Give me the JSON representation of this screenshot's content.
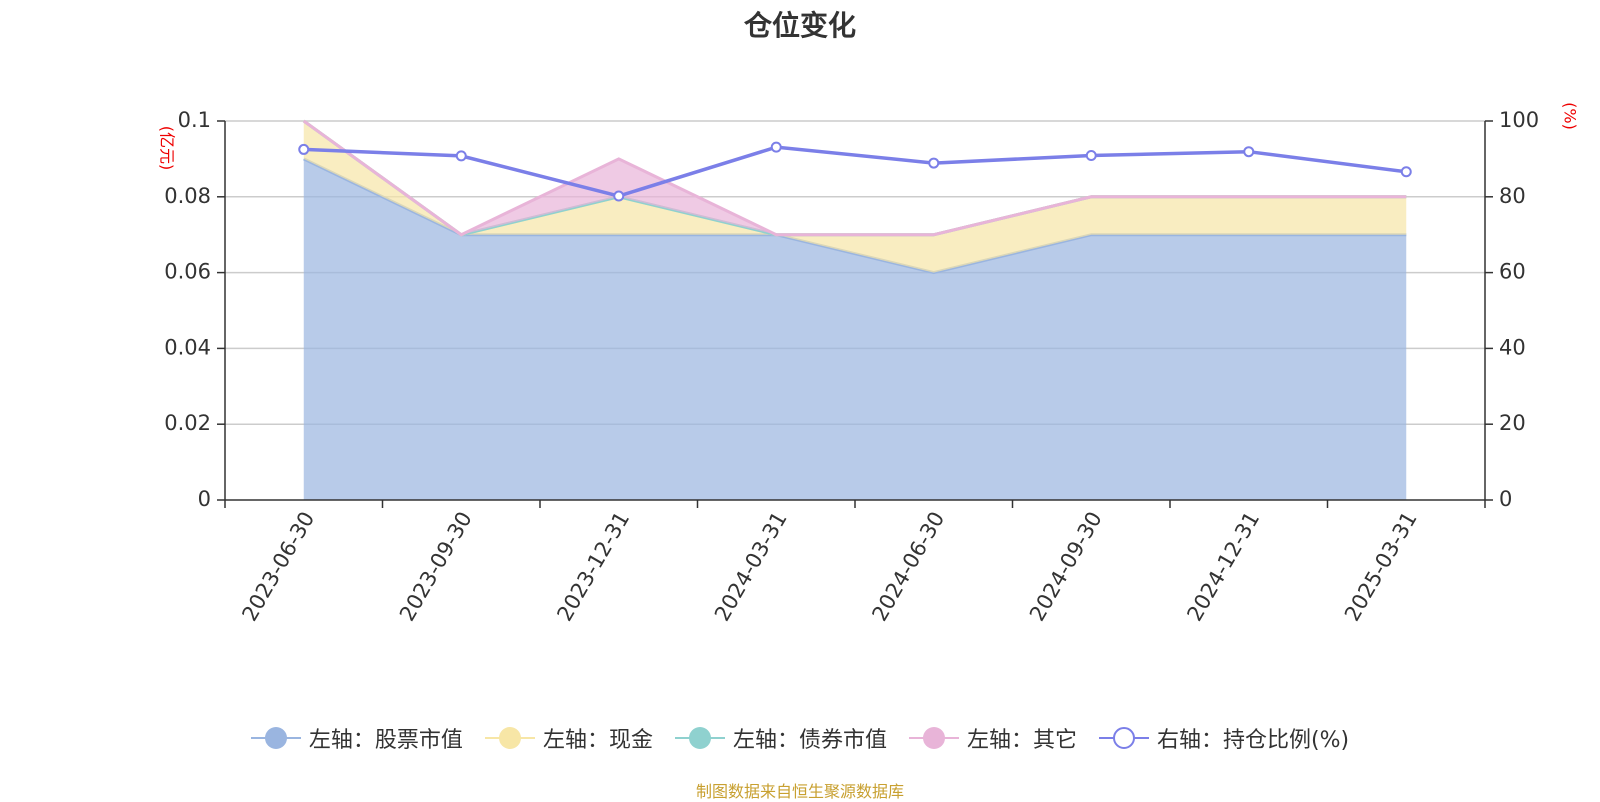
{
  "chart_data": {
    "type": "area",
    "title": "仓位变化",
    "categories": [
      "2023-06-30",
      "2023-09-30",
      "2023-12-31",
      "2024-03-31",
      "2024-06-30",
      "2024-09-30",
      "2024-12-31",
      "2025-03-31"
    ],
    "left_axis": {
      "unit": "(亿元)",
      "min": 0,
      "max": 0.1,
      "ticks": [
        "0",
        "0.02",
        "0.04",
        "0.06",
        "0.08",
        "0.1"
      ]
    },
    "right_axis": {
      "unit": "(%)",
      "min": 0,
      "max": 100,
      "ticks": [
        "0",
        "20",
        "40",
        "60",
        "80",
        "100"
      ]
    },
    "grid": true,
    "legend_position": "bottom",
    "series": [
      {
        "name": "左轴：股票市值",
        "axis": "left",
        "kind": "stacked-area",
        "color": "#9ab5e0",
        "values": [
          0.09,
          0.07,
          0.07,
          0.07,
          0.06,
          0.07,
          0.07,
          0.07
        ]
      },
      {
        "name": "左轴：现金",
        "axis": "left",
        "kind": "stacked-area",
        "color": "#f7e6a6",
        "values": [
          0.01,
          0.0,
          0.01,
          0.0,
          0.01,
          0.01,
          0.01,
          0.01
        ]
      },
      {
        "name": "左轴：债券市值",
        "axis": "left",
        "kind": "stacked-area",
        "color": "#8fd1cf",
        "values": [
          0,
          0,
          0,
          0,
          0,
          0,
          0,
          0
        ]
      },
      {
        "name": "左轴：其它",
        "axis": "left",
        "kind": "stacked-area",
        "color": "#e8b4d8",
        "values": [
          0,
          0,
          0.01,
          0,
          0,
          0,
          0,
          0
        ]
      },
      {
        "name": "右轴：持仓比例(%)",
        "axis": "right",
        "kind": "line",
        "color": "#7b7fe8",
        "values": [
          92.5,
          90.8,
          80.2,
          93.1,
          88.9,
          90.9,
          91.9,
          86.6
        ]
      }
    ]
  },
  "source_note": "制图数据来自恒生聚源数据库"
}
